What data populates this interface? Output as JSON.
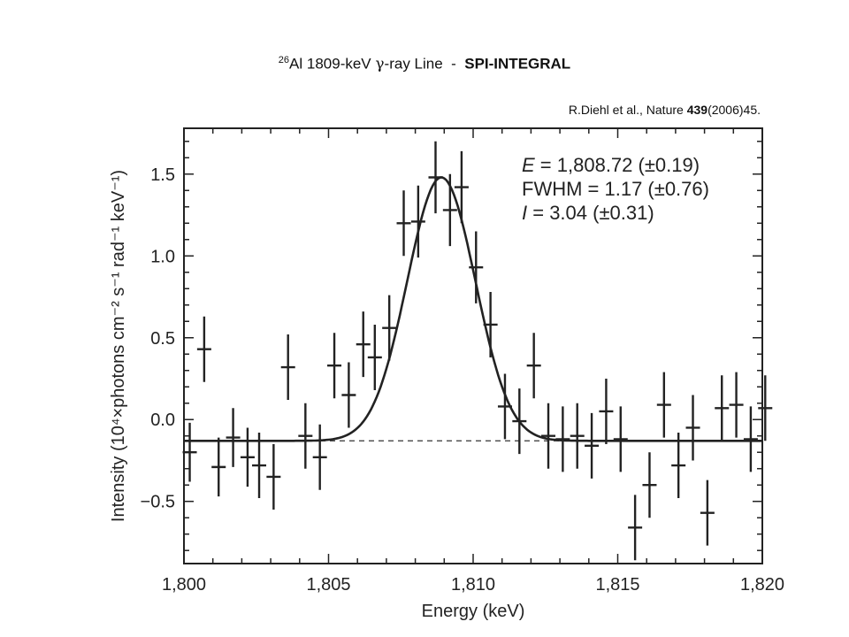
{
  "header": {
    "title_sup": "26",
    "title_main": "Al 1809-keV ",
    "title_gamma": "γ",
    "title_rest": "-ray Line  -  ",
    "title_bold": "SPI-INTEGRAL",
    "citation_pre": "R.Diehl et al., Nature ",
    "citation_vol": "439",
    "citation_post": "(2006)45."
  },
  "chart_data": {
    "type": "scatter",
    "xlabel": "Energy (keV)",
    "ylabel": "Intensity (10⁴×photons cm⁻² s⁻¹ rad⁻¹ keV⁻¹)",
    "xlim": [
      1800,
      1820
    ],
    "ylim": [
      -0.88,
      1.78
    ],
    "x_ticks": [
      1800,
      1805,
      1810,
      1815,
      1820
    ],
    "x_tick_labels": [
      "1,800",
      "1,805",
      "1,810",
      "1,815",
      "1,820"
    ],
    "y_ticks": [
      -0.5,
      0.0,
      0.5,
      1.0,
      1.5
    ],
    "y_tick_labels": [
      "−0.5",
      "0.0",
      "0.5",
      "1.0",
      "1.5"
    ],
    "annotations": [
      {
        "symbol": "E",
        "text": " = 1,808.72 (±0.19)"
      },
      {
        "symbol": "",
        "text": "FWHM = 1.17 (±0.76)"
      },
      {
        "symbol": "I",
        "text": " = 3.04 (±0.31)"
      }
    ],
    "fit": {
      "center": 1808.9,
      "amplitude": 1.61,
      "sigma": 1.18,
      "baseline": -0.13
    },
    "baseline": -0.13,
    "points": [
      {
        "x": 1800.2,
        "y": -0.2,
        "err": 0.18
      },
      {
        "x": 1800.7,
        "y": 0.43,
        "err": 0.2
      },
      {
        "x": 1801.2,
        "y": -0.29,
        "err": 0.18
      },
      {
        "x": 1801.7,
        "y": -0.11,
        "err": 0.18
      },
      {
        "x": 1802.2,
        "y": -0.23,
        "err": 0.18
      },
      {
        "x": 1802.6,
        "y": -0.28,
        "err": 0.2
      },
      {
        "x": 1803.1,
        "y": -0.35,
        "err": 0.2
      },
      {
        "x": 1803.6,
        "y": 0.32,
        "err": 0.2
      },
      {
        "x": 1804.2,
        "y": -0.1,
        "err": 0.2
      },
      {
        "x": 1804.7,
        "y": -0.23,
        "err": 0.2
      },
      {
        "x": 1805.2,
        "y": 0.33,
        "err": 0.2
      },
      {
        "x": 1805.7,
        "y": 0.15,
        "err": 0.2
      },
      {
        "x": 1806.2,
        "y": 0.46,
        "err": 0.2
      },
      {
        "x": 1806.6,
        "y": 0.38,
        "err": 0.2
      },
      {
        "x": 1807.1,
        "y": 0.56,
        "err": 0.2
      },
      {
        "x": 1807.6,
        "y": 1.2,
        "err": 0.2
      },
      {
        "x": 1808.1,
        "y": 1.21,
        "err": 0.22
      },
      {
        "x": 1808.7,
        "y": 1.48,
        "err": 0.22
      },
      {
        "x": 1809.2,
        "y": 1.28,
        "err": 0.22
      },
      {
        "x": 1809.6,
        "y": 1.42,
        "err": 0.22
      },
      {
        "x": 1810.1,
        "y": 0.93,
        "err": 0.22
      },
      {
        "x": 1810.6,
        "y": 0.58,
        "err": 0.2
      },
      {
        "x": 1811.1,
        "y": 0.08,
        "err": 0.2
      },
      {
        "x": 1811.6,
        "y": -0.01,
        "err": 0.2
      },
      {
        "x": 1812.1,
        "y": 0.33,
        "err": 0.2
      },
      {
        "x": 1812.6,
        "y": -0.1,
        "err": 0.2
      },
      {
        "x": 1813.1,
        "y": -0.12,
        "err": 0.2
      },
      {
        "x": 1813.6,
        "y": -0.1,
        "err": 0.2
      },
      {
        "x": 1814.1,
        "y": -0.16,
        "err": 0.2
      },
      {
        "x": 1814.6,
        "y": 0.05,
        "err": 0.2
      },
      {
        "x": 1815.1,
        "y": -0.12,
        "err": 0.2
      },
      {
        "x": 1815.6,
        "y": -0.66,
        "err": 0.2
      },
      {
        "x": 1816.1,
        "y": -0.4,
        "err": 0.2
      },
      {
        "x": 1816.6,
        "y": 0.09,
        "err": 0.2
      },
      {
        "x": 1817.1,
        "y": -0.28,
        "err": 0.2
      },
      {
        "x": 1817.6,
        "y": -0.05,
        "err": 0.2
      },
      {
        "x": 1818.1,
        "y": -0.57,
        "err": 0.2
      },
      {
        "x": 1818.6,
        "y": 0.07,
        "err": 0.2
      },
      {
        "x": 1819.1,
        "y": 0.09,
        "err": 0.2
      },
      {
        "x": 1819.6,
        "y": -0.12,
        "err": 0.2
      },
      {
        "x": 1820.1,
        "y": 0.07,
        "err": 0.2
      }
    ]
  }
}
